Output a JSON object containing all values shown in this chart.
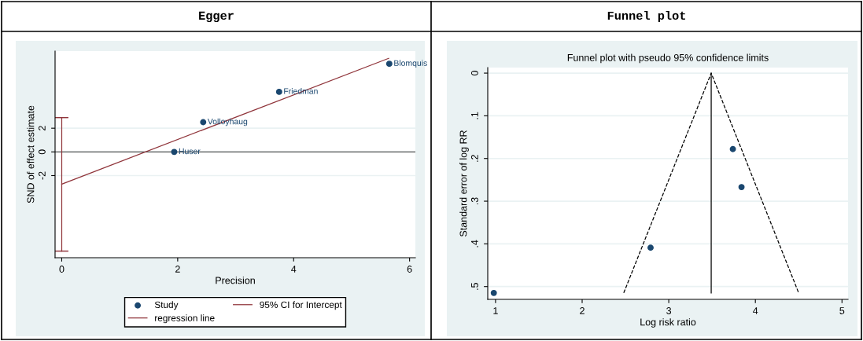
{
  "chart_data": [
    {
      "type": "scatter",
      "title": "Egger",
      "xlabel": "Precision",
      "ylabel": "SND of effect estimate",
      "xlim": [
        -0.115,
        6.1
      ],
      "xticks": [
        0,
        2,
        4,
        6
      ],
      "ylim": [
        -8.93,
        8.51
      ],
      "yticks": [
        -2,
        0,
        2
      ],
      "grid": "y",
      "legend": "bottom",
      "marker": "circle",
      "ref_lines": [
        {
          "axis": "y",
          "value": 0,
          "color": "#555555"
        }
      ],
      "series": [
        {
          "name": "Study",
          "color": "#1a476f",
          "x": [
            1.94,
            2.44,
            3.75,
            5.65
          ],
          "values": [
            0,
            2.51,
            5.07,
            7.44
          ]
        },
        {
          "name": "regression line",
          "type": "line",
          "marker": "none",
          "color": "#90353b",
          "line_style": "solid",
          "x": [
            0,
            5.64
          ],
          "values": [
            -2.72,
            7.9
          ]
        },
        {
          "name": "95% CI for Intercept",
          "type": "line",
          "marker": "none",
          "color": "#90353b",
          "line_style": "solid",
          "x": [
            0,
            0
          ],
          "values": [
            -8.37,
            2.9
          ]
        }
      ],
      "annotations": [
        {
          "text": "Huser",
          "x": 1.94,
          "y": 0
        },
        {
          "text": "Volloyhaug",
          "x": 2.44,
          "y": 2.51
        },
        {
          "text": "Friedman",
          "x": 3.75,
          "y": 5.07
        },
        {
          "text": "Blomquis",
          "x": 5.65,
          "y": 7.44
        }
      ]
    },
    {
      "type": "scatter",
      "title": "Funnel plot",
      "subtitle": "Funnel plot with pseudo 95% confidence limits",
      "xlabel": "Log risk ratio",
      "ylabel": "Standard error of log RR",
      "xlim": [
        0.91,
        5.07
      ],
      "xticks": [
        1,
        2,
        3,
        4,
        5
      ],
      "ylim": [
        0.53,
        -0.013
      ],
      "yticks": [
        0,
        {
          "value": 0.1,
          "label": ".1"
        },
        {
          "value": 0.2,
          "label": ".2"
        },
        {
          "value": 0.3,
          "label": ".3"
        },
        {
          "value": 0.4,
          "label": ".4"
        },
        {
          "value": 0.5,
          "label": ".5"
        }
      ],
      "grid": "y",
      "legend": false,
      "marker": "circle",
      "series": [
        {
          "type": "line",
          "marker": "none",
          "color": "#000000",
          "line_style": "dashed",
          "x": [
            2.48,
            3.49,
            4.5
          ],
          "values": [
            0.515,
            0,
            0.515
          ]
        },
        {
          "type": "line",
          "marker": "none",
          "color": "#000000",
          "line_style": "solid",
          "x": [
            3.49,
            3.49
          ],
          "values": [
            0,
            0.515
          ]
        },
        {
          "color": "#1a476f",
          "x": [
            0.98,
            2.79,
            3.74,
            3.84
          ],
          "values": [
            0.515,
            0.409,
            0.178,
            0.267
          ]
        }
      ]
    }
  ]
}
